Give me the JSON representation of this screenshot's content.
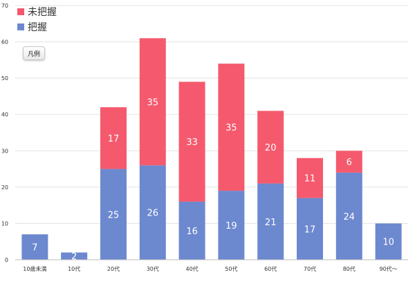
{
  "legend_button": {
    "label": "凡例"
  },
  "chart_data": {
    "type": "bar",
    "stacked": true,
    "categories": [
      "10歳未満",
      "10代",
      "20代",
      "30代",
      "40代",
      "50代",
      "60代",
      "70代",
      "80代",
      "90代〜"
    ],
    "series": [
      {
        "name": "把握",
        "color": "#6c88cf",
        "values": [
          7,
          2,
          25,
          26,
          16,
          19,
          21,
          17,
          24,
          10
        ]
      },
      {
        "name": "未把握",
        "color": "#f5596d",
        "values": [
          0,
          0,
          17,
          35,
          33,
          35,
          20,
          11,
          6,
          0
        ]
      }
    ],
    "ylim": [
      0,
      70
    ],
    "yticks": [
      0,
      10,
      20,
      30,
      40,
      50,
      60,
      70
    ],
    "grid": true,
    "legend_position": "top-left"
  }
}
